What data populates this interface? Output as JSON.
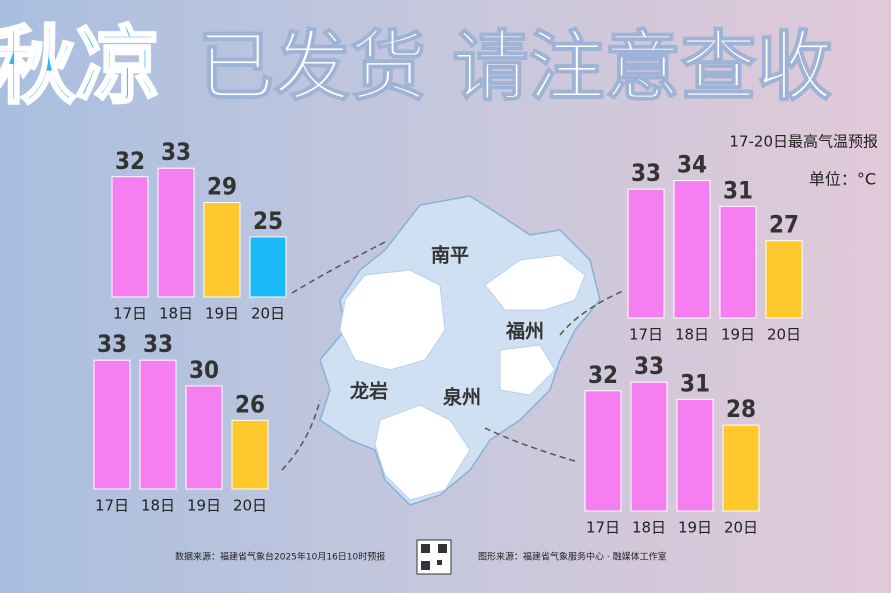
{
  "title_parts": [
    "秋凉",
    "已发货 请注意查收"
  ],
  "subtitle": "17-20日最高气温预报",
  "unit": "单位：°C",
  "source": "数据来源：福建省气象台2025年10月16日10时预报",
  "credit": "图形来源：福建省气象服务中心 · 融媒体工作室",
  "chart_data": [
    {
      "type": "bar",
      "region": "南平",
      "categories": [
        "17日",
        "18日",
        "19日",
        "20日"
      ],
      "values": [
        32,
        33,
        29,
        25
      ],
      "colors": [
        "#f57ef0",
        "#f57ef0",
        "#ffc92e",
        "#19b9f6"
      ],
      "ylim": [
        18,
        35
      ]
    },
    {
      "type": "bar",
      "region": "龙岩",
      "categories": [
        "17日",
        "18日",
        "19日",
        "20日"
      ],
      "values": [
        33,
        33,
        30,
        26
      ],
      "colors": [
        "#f57ef0",
        "#f57ef0",
        "#f57ef0",
        "#ffc92e"
      ],
      "ylim": [
        18,
        35
      ]
    },
    {
      "type": "bar",
      "region": "福州",
      "categories": [
        "17日",
        "18日",
        "19日",
        "20日"
      ],
      "values": [
        33,
        34,
        31,
        27
      ],
      "colors": [
        "#f57ef0",
        "#f57ef0",
        "#f57ef0",
        "#ffc92e"
      ],
      "ylim": [
        18,
        35
      ]
    },
    {
      "type": "bar",
      "region": "泉州",
      "categories": [
        "17日",
        "18日",
        "19日",
        "20日"
      ],
      "values": [
        32,
        33,
        31,
        28
      ],
      "colors": [
        "#f57ef0",
        "#f57ef0",
        "#f57ef0",
        "#ffc92e"
      ],
      "ylim": [
        18,
        35
      ]
    }
  ]
}
